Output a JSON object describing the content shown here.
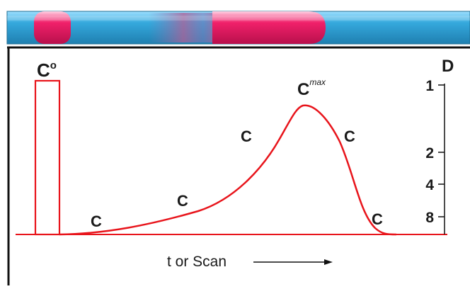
{
  "tube": {
    "base_color": "#35a9dd",
    "highlight_color": "#9fe0ff",
    "dye_color": "#f0206a",
    "band_colors": [
      "#f0206a",
      "#e7487c",
      "#b35f96",
      "#7f78b7"
    ]
  },
  "profile": {
    "curve_color": "#e8141b",
    "axis_color": "#111111",
    "pulse_label": "C",
    "pulse_superscript": "o",
    "peak_label": "C",
    "peak_superscript": "max",
    "point_labels": [
      "C",
      "C",
      "C",
      "C",
      "C"
    ],
    "x_caption": "t or Scan"
  },
  "dilution_axis": {
    "title": "D",
    "ticks": [
      "1",
      "2",
      "4",
      "8"
    ]
  }
}
